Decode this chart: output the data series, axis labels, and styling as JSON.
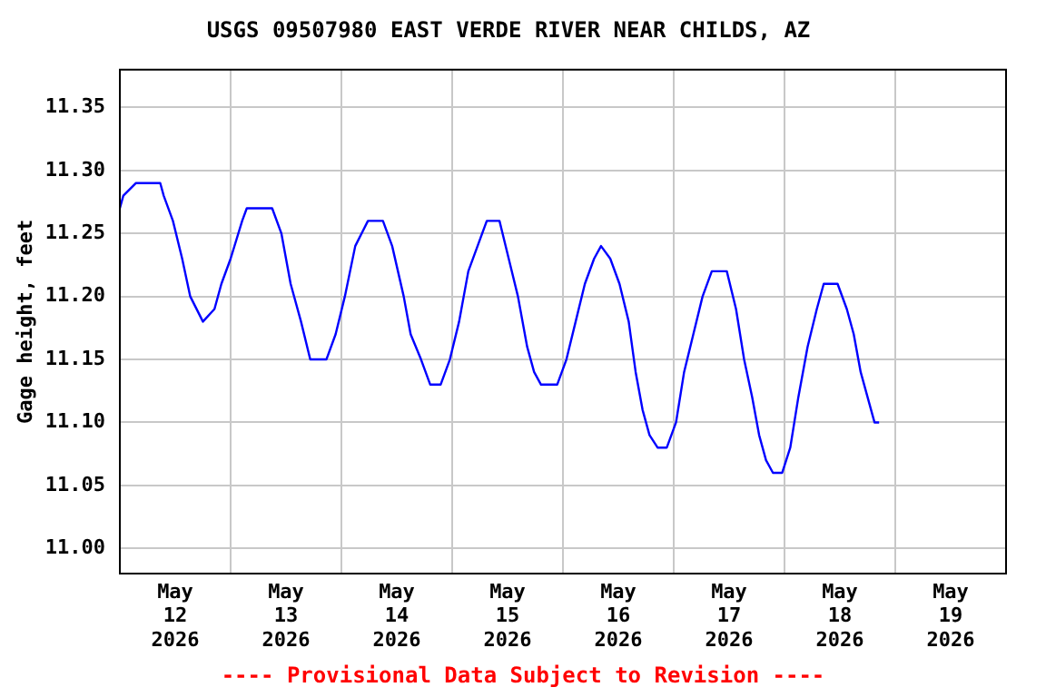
{
  "chart_data": {
    "type": "line",
    "title": "USGS 09507980 EAST VERDE RIVER NEAR CHILDS, AZ",
    "ylabel": "Gage height, feet",
    "annotations": [
      "---- Provisional Data Subject to Revision ----"
    ],
    "x": [
      "2026-05-12T00:00",
      "2026-05-12T00:45",
      "2026-05-12T03:30",
      "2026-05-12T08:45",
      "2026-05-12T09:30",
      "2026-05-12T11:30",
      "2026-05-12T13:30",
      "2026-05-12T15:15",
      "2026-05-12T18:00",
      "2026-05-12T20:30",
      "2026-05-12T22:00",
      "2026-05-13T00:00",
      "2026-05-13T02:30",
      "2026-05-13T03:30",
      "2026-05-13T09:00",
      "2026-05-13T11:00",
      "2026-05-13T13:00",
      "2026-05-13T15:15",
      "2026-05-13T17:15",
      "2026-05-13T20:45",
      "2026-05-13T22:45",
      "2026-05-14T00:45",
      "2026-05-14T03:00",
      "2026-05-14T05:45",
      "2026-05-14T09:00",
      "2026-05-14T11:00",
      "2026-05-14T13:30",
      "2026-05-14T15:00",
      "2026-05-14T17:15",
      "2026-05-14T19:15",
      "2026-05-14T21:30",
      "2026-05-14T23:30",
      "2026-05-15T01:30",
      "2026-05-15T03:30",
      "2026-05-15T05:30",
      "2026-05-15T07:30",
      "2026-05-15T10:15",
      "2026-05-15T12:15",
      "2026-05-15T14:15",
      "2026-05-15T16:15",
      "2026-05-15T17:45",
      "2026-05-15T19:15",
      "2026-05-15T22:45",
      "2026-05-16T00:45",
      "2026-05-16T02:45",
      "2026-05-16T04:45",
      "2026-05-16T06:45",
      "2026-05-16T08:15",
      "2026-05-16T10:15",
      "2026-05-16T12:15",
      "2026-05-16T14:15",
      "2026-05-16T15:45",
      "2026-05-16T17:15",
      "2026-05-16T18:45",
      "2026-05-16T20:30",
      "2026-05-16T22:30",
      "2026-05-17T00:30",
      "2026-05-17T02:15",
      "2026-05-17T04:15",
      "2026-05-17T06:15",
      "2026-05-17T08:15",
      "2026-05-17T11:30",
      "2026-05-17T13:30",
      "2026-05-17T15:15",
      "2026-05-17T17:00",
      "2026-05-17T18:30",
      "2026-05-17T20:00",
      "2026-05-17T21:30",
      "2026-05-17T23:30",
      "2026-05-18T01:15",
      "2026-05-18T03:00",
      "2026-05-18T05:00",
      "2026-05-18T07:00",
      "2026-05-18T08:30",
      "2026-05-18T11:30",
      "2026-05-18T13:30",
      "2026-05-18T15:00",
      "2026-05-18T16:30",
      "2026-05-18T18:00",
      "2026-05-18T19:30",
      "2026-05-18T20:30"
    ],
    "series": [
      {
        "color": "#0000ff",
        "values": [
          11.27,
          11.28,
          11.29,
          11.29,
          11.28,
          11.26,
          11.23,
          11.2,
          11.18,
          11.19,
          11.21,
          11.23,
          11.26,
          11.27,
          11.27,
          11.25,
          11.21,
          11.18,
          11.15,
          11.15,
          11.17,
          11.2,
          11.24,
          11.26,
          11.26,
          11.24,
          11.2,
          11.17,
          11.15,
          11.13,
          11.13,
          11.15,
          11.18,
          11.22,
          11.24,
          11.26,
          11.26,
          11.23,
          11.2,
          11.16,
          11.14,
          11.13,
          11.13,
          11.15,
          11.18,
          11.21,
          11.23,
          11.24,
          11.23,
          11.21,
          11.18,
          11.14,
          11.11,
          11.09,
          11.08,
          11.08,
          11.1,
          11.14,
          11.17,
          11.2,
          11.22,
          11.22,
          11.19,
          11.15,
          11.12,
          11.09,
          11.07,
          11.06,
          11.06,
          11.08,
          11.12,
          11.16,
          11.19,
          11.21,
          11.21,
          11.19,
          11.17,
          11.14,
          11.12,
          11.1,
          11.1
        ]
      }
    ],
    "xlim": [
      "2026-05-12",
      "2026-05-20"
    ],
    "xticks": [
      {
        "value": "2026-05-12T00:00",
        "label": null
      },
      {
        "value": "2026-05-12T12:00",
        "label": "May\n12\n2026"
      },
      {
        "value": "2026-05-13T00:00",
        "label": null
      },
      {
        "value": "2026-05-13T12:00",
        "label": "May\n13\n2026"
      },
      {
        "value": "2026-05-14T00:00",
        "label": null
      },
      {
        "value": "2026-05-14T12:00",
        "label": "May\n14\n2026"
      },
      {
        "value": "2026-05-15T00:00",
        "label": null
      },
      {
        "value": "2026-05-15T12:00",
        "label": "May\n15\n2026"
      },
      {
        "value": "2026-05-16T00:00",
        "label": null
      },
      {
        "value": "2026-05-16T12:00",
        "label": "May\n16\n2026"
      },
      {
        "value": "2026-05-17T00:00",
        "label": null
      },
      {
        "value": "2026-05-17T12:00",
        "label": "May\n17\n2026"
      },
      {
        "value": "2026-05-18T00:00",
        "label": null
      },
      {
        "value": "2026-05-18T12:00",
        "label": "May\n18\n2026"
      },
      {
        "value": "2026-05-19T00:00",
        "label": null
      },
      {
        "value": "2026-05-19T12:00",
        "label": "May\n19\n2026"
      },
      {
        "value": "2026-05-20T00:00",
        "label": null
      }
    ],
    "ylim": [
      10.98,
      11.38
    ],
    "yticks": [
      {
        "value": 11.0,
        "label": "11.00"
      },
      {
        "value": 11.05,
        "label": "11.05"
      },
      {
        "value": 11.1,
        "label": "11.10"
      },
      {
        "value": 11.15,
        "label": "11.15"
      },
      {
        "value": 11.2,
        "label": "11.20"
      },
      {
        "value": 11.25,
        "label": "11.25"
      },
      {
        "value": 11.3,
        "label": "11.30"
      },
      {
        "value": 11.35,
        "label": "11.35"
      }
    ],
    "grid": true,
    "legend": false,
    "marker": "none",
    "line_style": "solid"
  }
}
